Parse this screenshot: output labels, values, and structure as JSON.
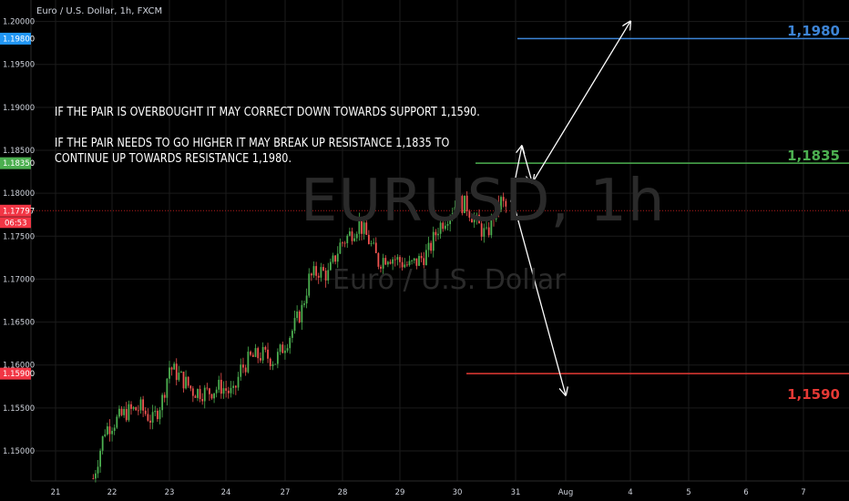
{
  "header": {
    "symbol_title": "Euro / U.S. Dollar, 1h, FXCM"
  },
  "watermark": {
    "ticker": "EURUSD, 1h",
    "name": "Euro / U.S. Dollar"
  },
  "notes": {
    "line1": "IF THE PAIR IS OVERBOUGHT IT MAY CORRECT DOWN TOWARDS SUPPORT 1,1590.",
    "line2": "IF THE PAIR NEEDS TO GO HIGHER IT MAY BREAK UP RESISTANCE 1,1835 TO",
    "line3": "CONTINUE UP TOWARDS RESISTANCE 1,1980."
  },
  "countdown": "06:53",
  "colors": {
    "up": "#4caf50",
    "down": "#ef5350",
    "resistance_high": "#3d84d6",
    "resistance_mid": "#4caf50",
    "support": "#e53935",
    "grid": "#1b1b1b",
    "axis_text": "#cfd3dc"
  },
  "chart_data": {
    "type": "line",
    "title": "Euro / U.S. Dollar, 1h, FXCM",
    "ylim": [
      1.1465,
      1.2025
    ],
    "grid": true,
    "y_ticks": [
      "1.20000",
      "1.19500",
      "1.19000",
      "1.18500",
      "1.18000",
      "1.17500",
      "1.17000",
      "1.16500",
      "1.16000",
      "1.15500",
      "1.15000"
    ],
    "x_ticks": [
      "21",
      "22",
      "23",
      "24",
      "27",
      "28",
      "29",
      "30",
      "31",
      "Aug",
      "4",
      "5",
      "6",
      "7"
    ],
    "price_tags": [
      {
        "label": "1.19800",
        "value": 1.198,
        "color": "#2196f3"
      },
      {
        "label": "1.18350",
        "value": 1.1835,
        "color": "#4caf50"
      },
      {
        "label": "1.17797",
        "value": 1.17797,
        "color": "#f23645"
      },
      {
        "label": "1.15900",
        "value": 1.159,
        "color": "#f23645"
      }
    ],
    "levels": [
      {
        "name": "1,1980",
        "value": 1.198,
        "x_start_tick": "31"
      },
      {
        "name": "1,1835",
        "value": 1.1835,
        "x_start_tick": "30"
      },
      {
        "name": "1,1590",
        "value": 1.159,
        "x_start_tick": "30"
      }
    ],
    "last_price": 1.17797,
    "price_path": [
      {
        "x": "21 Jul 16:00",
        "y": 1.1468
      },
      {
        "x": "21 Jul 21:00",
        "y": 1.1525
      },
      {
        "x": "22 Jul 06:00",
        "y": 1.1545
      },
      {
        "x": "22 Jul 12:00",
        "y": 1.155
      },
      {
        "x": "22 Jul 17:00",
        "y": 1.1535
      },
      {
        "x": "22 Jul 21:00",
        "y": 1.156
      },
      {
        "x": "23 Jul 00:00",
        "y": 1.1598
      },
      {
        "x": "23 Jul 05:00",
        "y": 1.1585
      },
      {
        "x": "23 Jul 10:00",
        "y": 1.157
      },
      {
        "x": "23 Jul 16:00",
        "y": 1.1568
      },
      {
        "x": "23 Jul 22:00",
        "y": 1.1575
      },
      {
        "x": "24 Jul 03:00",
        "y": 1.1565
      },
      {
        "x": "24 Jul 06:00",
        "y": 1.1595
      },
      {
        "x": "24 Jul 10:00",
        "y": 1.1608
      },
      {
        "x": "24 Jul 15:00",
        "y": 1.1612
      },
      {
        "x": "24 Jul 20:00",
        "y": 1.1605
      },
      {
        "x": "24 Jul 23:00",
        "y": 1.162
      },
      {
        "x": "27 Jul 03:00",
        "y": 1.164
      },
      {
        "x": "27 Jul 07:00",
        "y": 1.1665
      },
      {
        "x": "27 Jul 10:00",
        "y": 1.17
      },
      {
        "x": "27 Jul 14:00",
        "y": 1.171
      },
      {
        "x": "27 Jul 18:00",
        "y": 1.1705
      },
      {
        "x": "27 Jul 23:00",
        "y": 1.174
      },
      {
        "x": "28 Jul 03:00",
        "y": 1.1752
      },
      {
        "x": "28 Jul 07:00",
        "y": 1.1765
      },
      {
        "x": "28 Jul 11:00",
        "y": 1.1745
      },
      {
        "x": "28 Jul 15:00",
        "y": 1.172
      },
      {
        "x": "28 Jul 19:00",
        "y": 1.1728
      },
      {
        "x": "28 Jul 23:00",
        "y": 1.1722
      },
      {
        "x": "29 Jul 04:00",
        "y": 1.1715
      },
      {
        "x": "29 Jul 08:00",
        "y": 1.1722
      },
      {
        "x": "29 Jul 12:00",
        "y": 1.1732
      },
      {
        "x": "29 Jul 16:00",
        "y": 1.176
      },
      {
        "x": "29 Jul 20:00",
        "y": 1.1775
      },
      {
        "x": "30 Jul 00:00",
        "y": 1.179
      },
      {
        "x": "30 Jul 04:00",
        "y": 1.1785
      },
      {
        "x": "30 Jul 08:00",
        "y": 1.1765
      },
      {
        "x": "30 Jul 12:00",
        "y": 1.175
      },
      {
        "x": "30 Jul 15:00",
        "y": 1.1775
      },
      {
        "x": "30 Jul 18:00",
        "y": 1.179
      },
      {
        "x": "30 Jul 21:00",
        "y": 1.17797
      }
    ],
    "projections": [
      {
        "x": [
          "30 Jul 22:00",
          "31 Jul 03:00"
        ],
        "y": [
          1.179,
          1.1855
        ]
      },
      {
        "x": [
          "31 Jul 03:00",
          "31 Jul 08:00"
        ],
        "y": [
          1.1855,
          1.1812
        ]
      },
      {
        "x": [
          "31 Jul 08:00",
          "4 Aug 00:00"
        ],
        "y": [
          1.1812,
          1.2
        ]
      },
      {
        "x": [
          "30 Jul 23:00",
          "3 Aug 00:00"
        ],
        "y": [
          1.179,
          1.1565
        ]
      }
    ]
  }
}
